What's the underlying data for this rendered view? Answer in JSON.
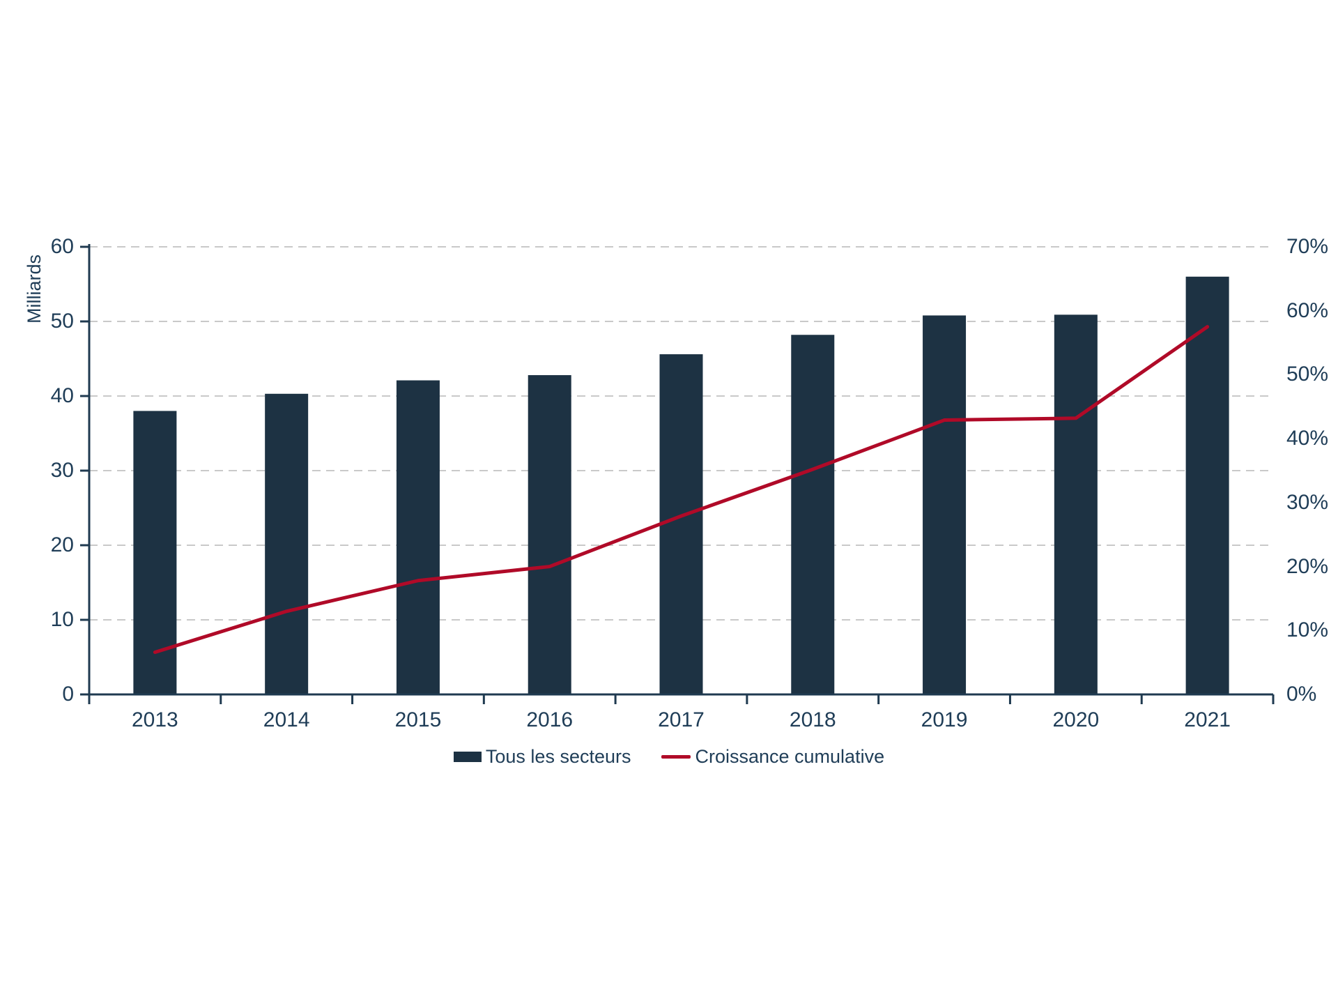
{
  "chart_data": {
    "type": "bar+line combo",
    "title": "",
    "categories": [
      "2013",
      "2014",
      "2015",
      "2016",
      "2017",
      "2018",
      "2019",
      "2020",
      "2021"
    ],
    "series": [
      {
        "name": "Tous les secteurs",
        "type": "bar",
        "axis": "left",
        "color": "#1d3243",
        "values": [
          38.0,
          40.3,
          42.1,
          42.8,
          45.6,
          48.2,
          50.8,
          50.9,
          56.0
        ]
      },
      {
        "name": "Croissance cumulative",
        "type": "line",
        "axis": "right",
        "color": "#b00a28",
        "values": [
          6.6,
          13.0,
          17.8,
          20.0,
          27.9,
          35.2,
          42.9,
          43.2,
          57.5
        ]
      }
    ],
    "left_axis": {
      "title": "Milliards",
      "min": 0,
      "max": 60,
      "step": 10,
      "tick_labels": [
        "0",
        "10",
        "20",
        "30",
        "40",
        "50",
        "60"
      ]
    },
    "right_axis": {
      "min": 0,
      "max": 70,
      "step": 10,
      "tick_labels": [
        "0%",
        "10%",
        "20%",
        "30%",
        "40%",
        "50%",
        "60%",
        "70%"
      ]
    },
    "grid": {
      "horizontal": "dashed",
      "color": "#c9c9c9"
    },
    "legend_position": "bottom-center"
  },
  "legend": {
    "items": [
      {
        "label": "Tous les secteurs",
        "swatch": "bar"
      },
      {
        "label": "Croissance cumulative",
        "swatch": "line"
      }
    ]
  },
  "colors": {
    "bar": "#1d3243",
    "line": "#b00a28",
    "text": "#1f3d57",
    "grid": "#c9c9c9",
    "axis": "#1f3a50",
    "background": "#ffffff"
  }
}
